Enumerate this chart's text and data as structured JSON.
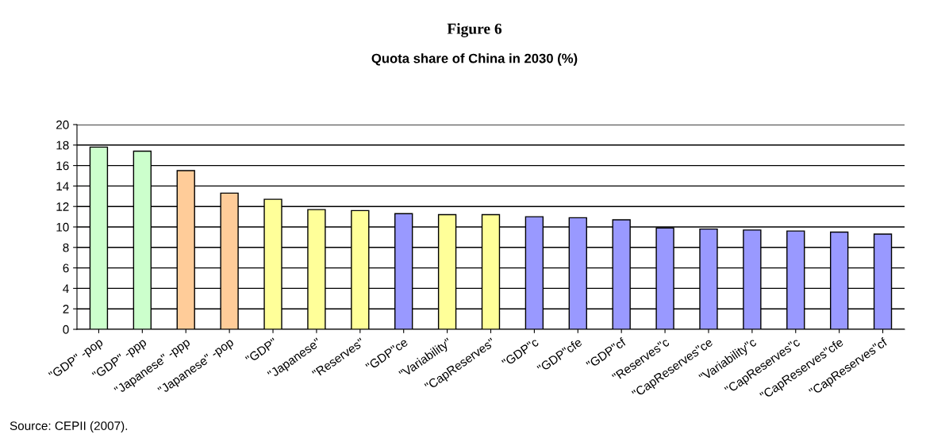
{
  "chart_data": {
    "type": "bar",
    "title": "Figure 6",
    "subtitle": "Quota share of China in 2030 (%)",
    "categories": [
      "\"GDP\" -pop",
      "\"GDP\" -ppp",
      "\"Japanese\" -ppp",
      "\"Japanese\" -pop",
      "\"GDP\"",
      "\"Japanese\"",
      "\"Reserves\"",
      "\"GDP\"ce",
      "\"Variability\"",
      "\"CapReserves\"",
      "\"GDP\"c",
      "\"GDP\"cfe",
      "\"GDP\"cf",
      "\"Reserves\"c",
      "\"CapReserves\"ce",
      "\"Variability\"c",
      "\"CapReserves\"c",
      "\"CapReserves\"cfe",
      "\"CapReserves\"cf"
    ],
    "values": [
      17.8,
      17.4,
      15.5,
      13.3,
      12.7,
      11.7,
      11.6,
      11.3,
      11.2,
      11.2,
      11.0,
      10.9,
      10.7,
      9.9,
      9.8,
      9.7,
      9.6,
      9.5,
      9.3
    ],
    "colors": [
      "#ccffcc",
      "#ccffcc",
      "#ffcc99",
      "#ffcc99",
      "#ffff99",
      "#ffff99",
      "#ffff99",
      "#9999ff",
      "#ffff99",
      "#ffff99",
      "#9999ff",
      "#9999ff",
      "#9999ff",
      "#9999ff",
      "#9999ff",
      "#9999ff",
      "#9999ff",
      "#9999ff",
      "#9999ff"
    ],
    "ylim": [
      0,
      20
    ],
    "yticks": [
      0,
      2,
      4,
      6,
      8,
      10,
      12,
      14,
      16,
      18,
      20
    ],
    "grid": "y",
    "annotations": [
      "Source: CEPII (2007)."
    ]
  }
}
